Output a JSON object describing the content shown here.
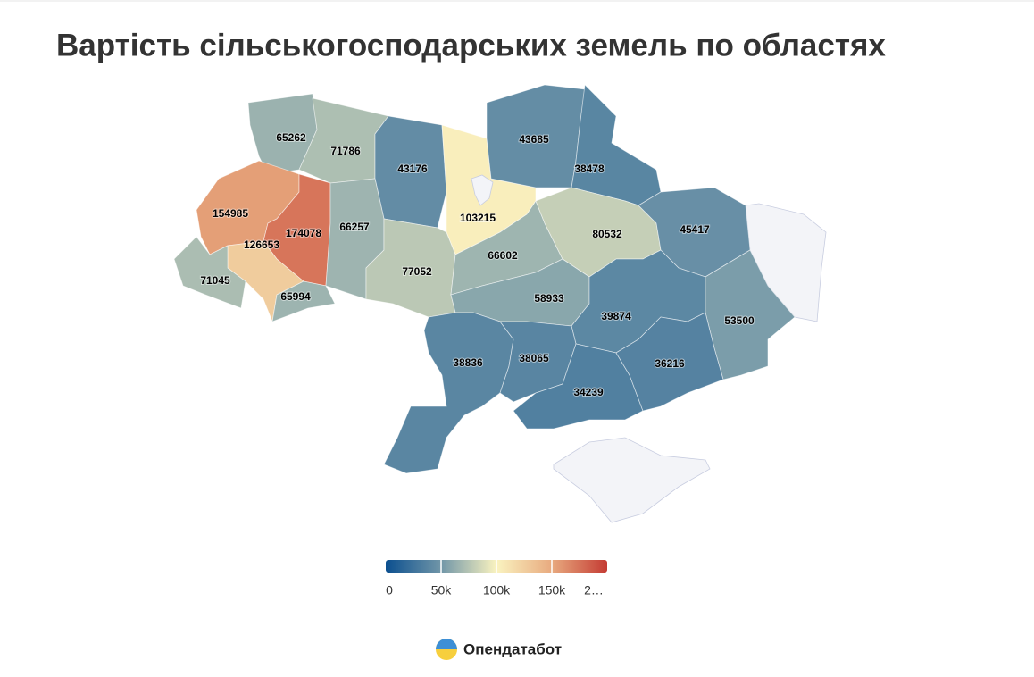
{
  "chart_data": {
    "type": "choropleth",
    "title": "Вартість сільськогосподарських земель по областях",
    "values": [
      65262,
      71786,
      43176,
      103215,
      43685,
      38478,
      154985,
      174078,
      66257,
      126653,
      71045,
      65994,
      77052,
      66602,
      80532,
      45417,
      58933,
      39874,
      53500,
      38836,
      38065,
      34239,
      36216
    ],
    "colorlim": [
      0,
      200000
    ],
    "colorticks": [
      0,
      {
        "value": 50000,
        "label": "50k"
      },
      {
        "value": 100000,
        "label": "100k"
      },
      {
        "value": 150000,
        "label": "150k"
      },
      {
        "value": 200000,
        "label": "2…"
      }
    ],
    "colors": [
      "#0b4f8f",
      "#7196a8",
      "#faf3c0",
      "#e8aa7f",
      "#c43b33"
    ]
  },
  "brand": "Опендатабот"
}
